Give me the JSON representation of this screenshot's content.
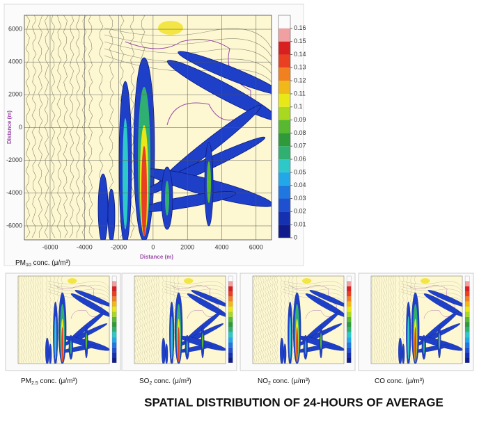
{
  "chart_data": {
    "type": "contour",
    "xlabel": "Distance (m)",
    "ylabel": "Distance (m)",
    "xlim": [
      -7500,
      6900
    ],
    "ylim": [
      -6850,
      6850
    ],
    "xticks": [
      -6000,
      -4000,
      -2000,
      0,
      2000,
      4000,
      6000
    ],
    "yticks": [
      -6000,
      -4000,
      -2000,
      0,
      2000,
      4000,
      6000
    ],
    "grid": true,
    "clim": [
      0,
      0.17
    ],
    "cticks": [
      0,
      0.01,
      0.02,
      0.03,
      0.04,
      0.05,
      0.06,
      0.07,
      0.08,
      0.09,
      0.1,
      0.11,
      0.12,
      0.13,
      0.14,
      0.15,
      0.16
    ],
    "colormap": [
      "#f5f0c8",
      "#101c8c",
      "#1530b0",
      "#1f50d0",
      "#1e78e0",
      "#22a8e8",
      "#2ec8c8",
      "#30b070",
      "#2e9a3a",
      "#58b830",
      "#a8d820",
      "#e8e818",
      "#f0b818",
      "#f08020",
      "#e84020",
      "#d82020",
      "#f0a0a0"
    ],
    "captions": [
      {
        "name": "PM",
        "sub": "10",
        "rest": " conc. (μ/m³)"
      },
      {
        "name": "PM",
        "sub": "2.5",
        "rest": " conc. (μ/m³)"
      },
      {
        "name": "SO",
        "sub": "2",
        "rest": " conc. (μ/m³)"
      },
      {
        "name": "NO",
        "sub": "2",
        "rest": " conc. (μ/m³)"
      },
      {
        "name": "CO",
        "sub": "",
        "rest": " conc. (μ/m³)"
      }
    ],
    "title": "SPATIAL DISTRIBUTION OF 24-HOURS OF AVERAGE"
  }
}
